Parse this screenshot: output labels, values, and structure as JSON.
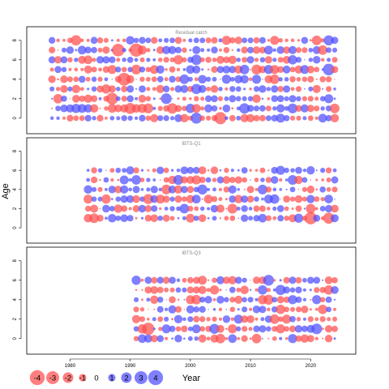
{
  "chart_data": {
    "type": "scatter",
    "subtype": "bubble-residual-plot",
    "ylabel": "Age",
    "xlabel": "Year",
    "x_ticks": [
      1980,
      1990,
      2000,
      2010,
      2020
    ],
    "x_range": [
      1972.8,
      2027.5
    ],
    "colors": {
      "negative": "#FF4D4D",
      "positive": "#4D4DFF"
    },
    "legend": {
      "placement": "bottom-left",
      "labels": [
        "-4",
        "-3",
        "-2",
        "-1",
        "0",
        "1",
        "2",
        "3",
        "4"
      ],
      "values": [
        -4,
        -3,
        -2,
        -1,
        0,
        1,
        2,
        3,
        4
      ]
    },
    "panels": [
      {
        "title": "Residual catch",
        "years": [
          1977,
          2024
        ],
        "ages": [
          0,
          8
        ],
        "y_ticks": [
          0,
          2,
          4,
          6,
          8
        ],
        "ylim": [
          -1.6,
          9.4
        ],
        "seed": 11
      },
      {
        "title": "IBTS-Q1",
        "years": [
          1983,
          2024
        ],
        "ages": [
          1,
          6
        ],
        "y_ticks": [
          0,
          2,
          4,
          6,
          8
        ],
        "ylim": [
          -1.6,
          9.4
        ],
        "seed": 29
      },
      {
        "title": "IBTS-Q3",
        "years": [
          1991,
          2024
        ],
        "ages": [
          0,
          6
        ],
        "y_ticks": [
          0,
          2,
          4,
          6,
          8
        ],
        "ylim": [
          -1.6,
          9.4
        ],
        "seed": 47
      }
    ]
  }
}
